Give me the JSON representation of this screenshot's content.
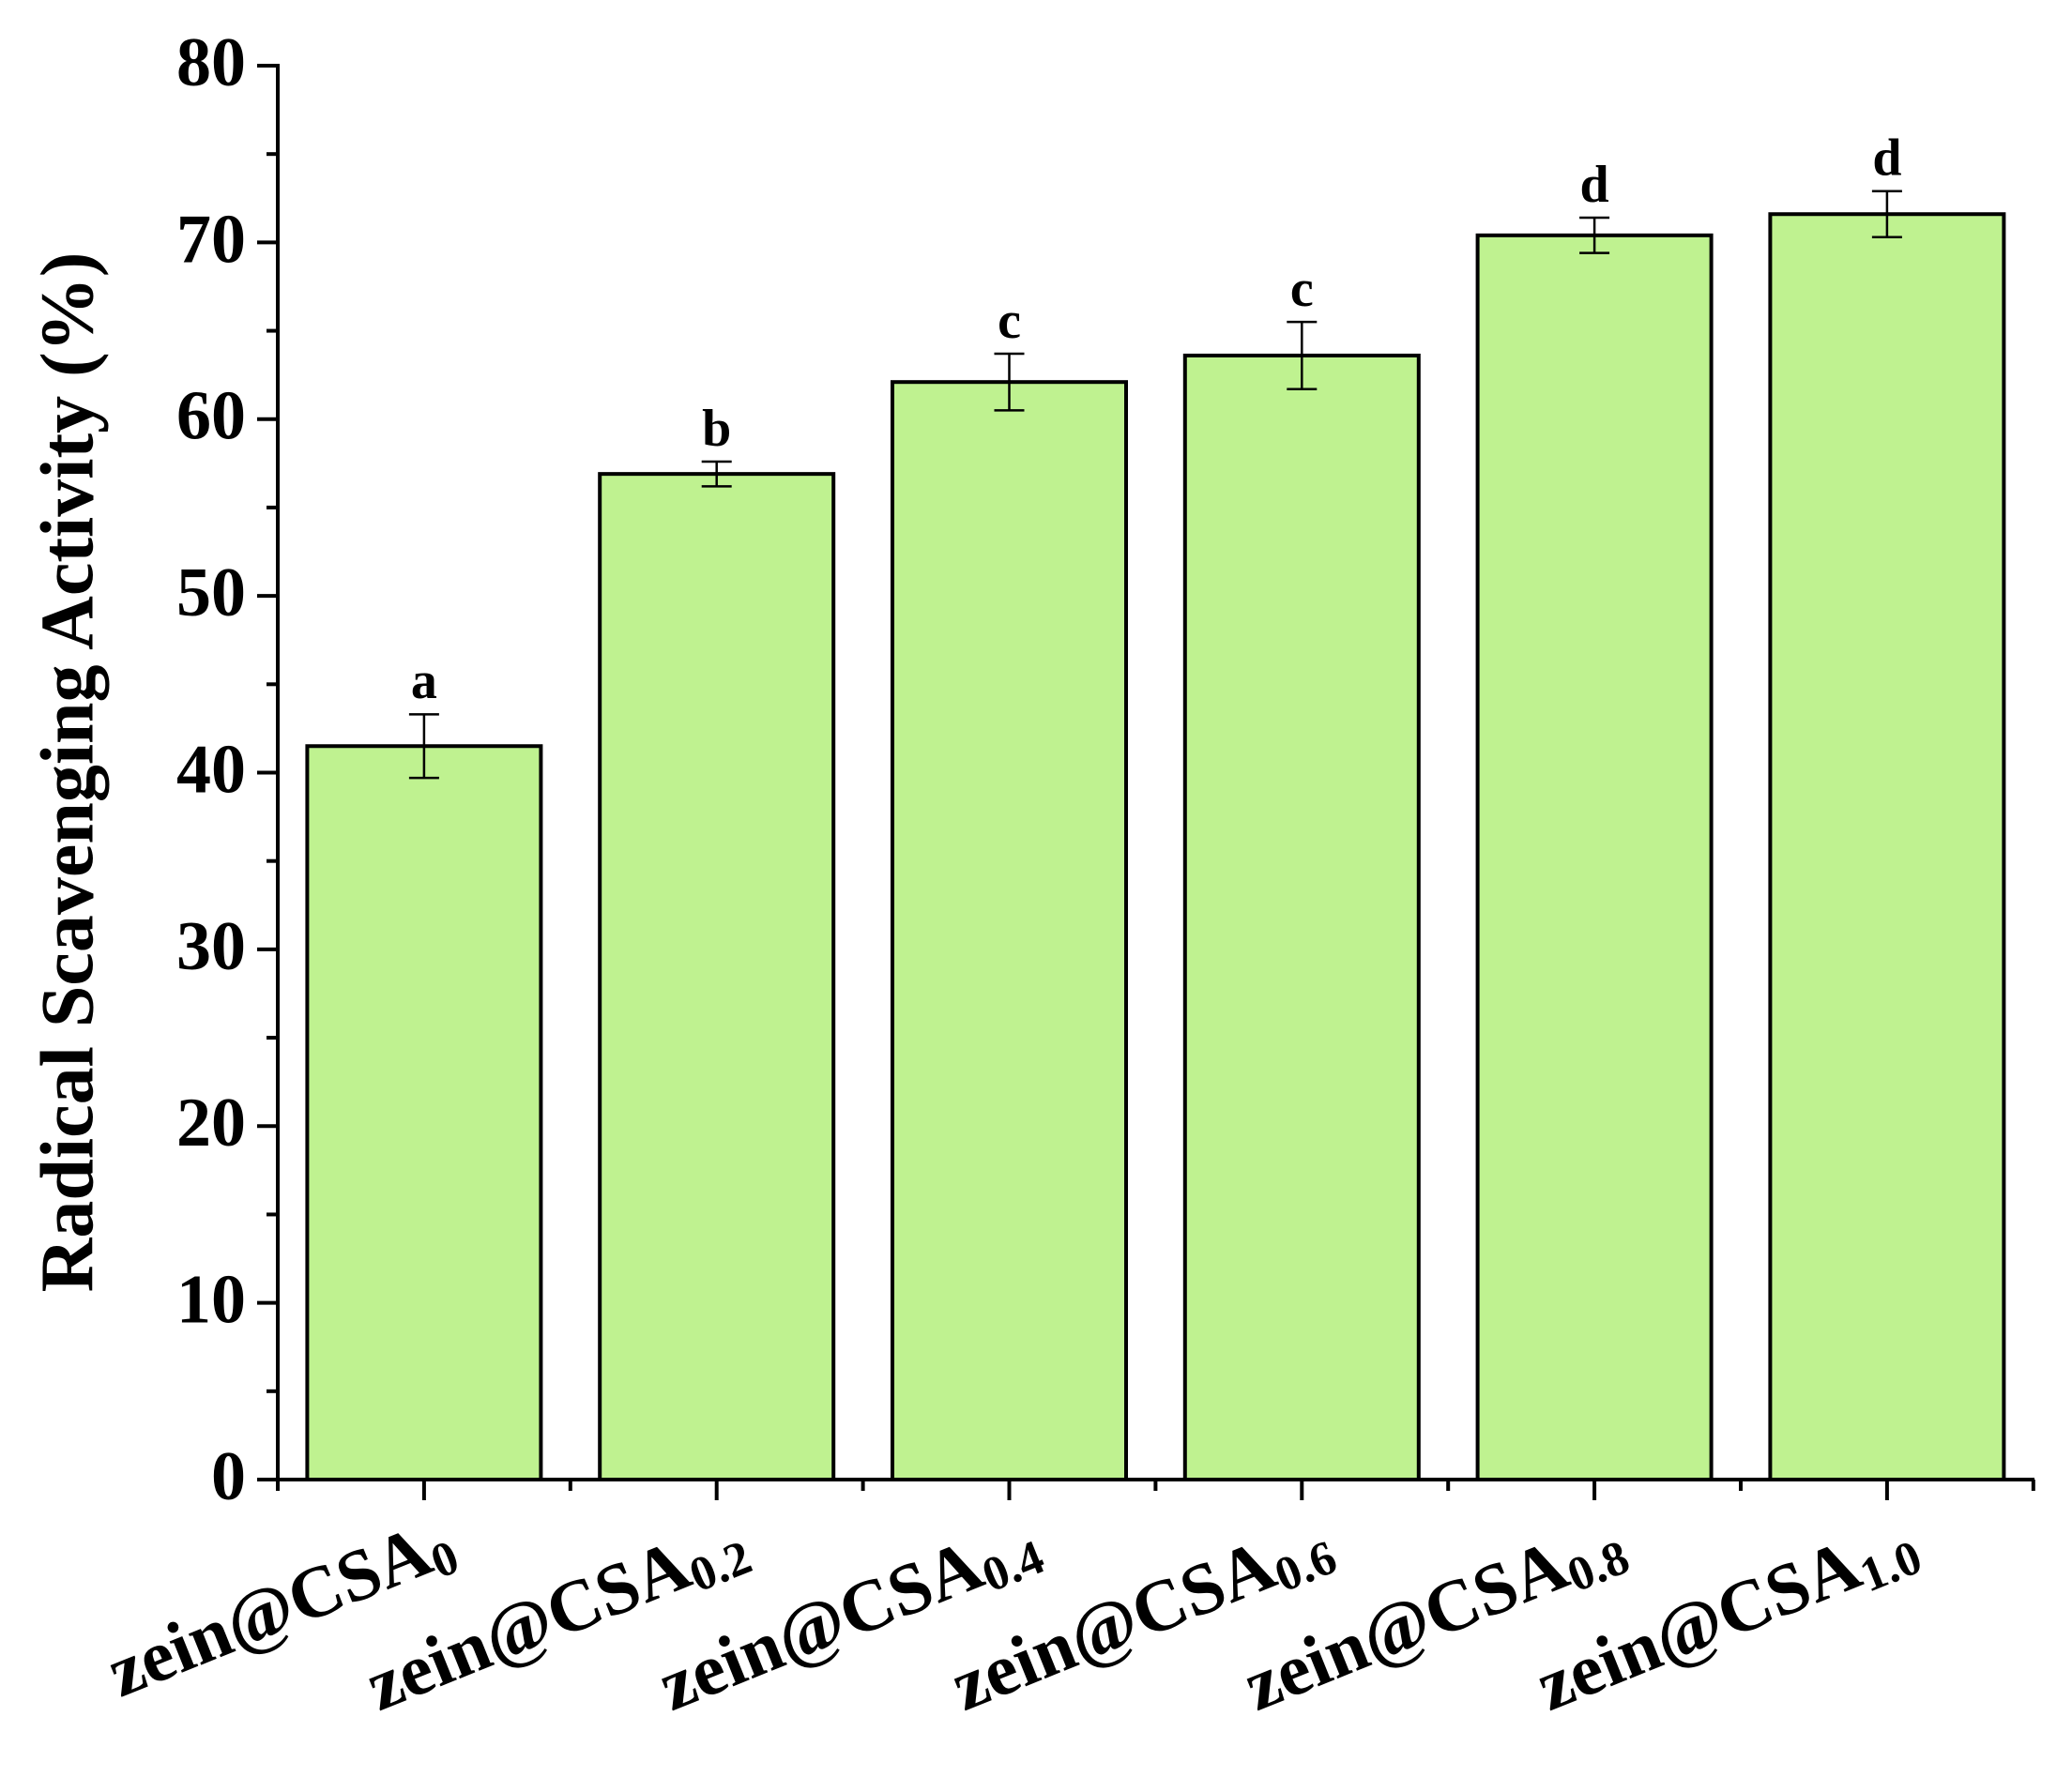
{
  "chart_data": {
    "type": "bar",
    "y_label": "Radical Scavenging Activity (%)",
    "categories": [
      {
        "main": "zein@CSA",
        "sub": "0"
      },
      {
        "main": "zein@CSA",
        "sub": "0.2"
      },
      {
        "main": "zein@CSA",
        "sub": "0.4"
      },
      {
        "main": "zein@CSA",
        "sub": "0.6"
      },
      {
        "main": "zein@CSA",
        "sub": "0.8"
      },
      {
        "main": "zein@CSA",
        "sub": "1.0"
      }
    ],
    "values": [
      41.5,
      56.9,
      62.1,
      63.6,
      70.4,
      71.6
    ],
    "errors": [
      1.8,
      0.7,
      1.6,
      1.9,
      1.0,
      1.3
    ],
    "letters": [
      "a",
      "b",
      "c",
      "c",
      "d",
      "d"
    ],
    "color": "#bff290",
    "ylim": [
      0,
      80
    ],
    "yticks": [
      0,
      10,
      20,
      30,
      40,
      50,
      60,
      70,
      80
    ]
  }
}
